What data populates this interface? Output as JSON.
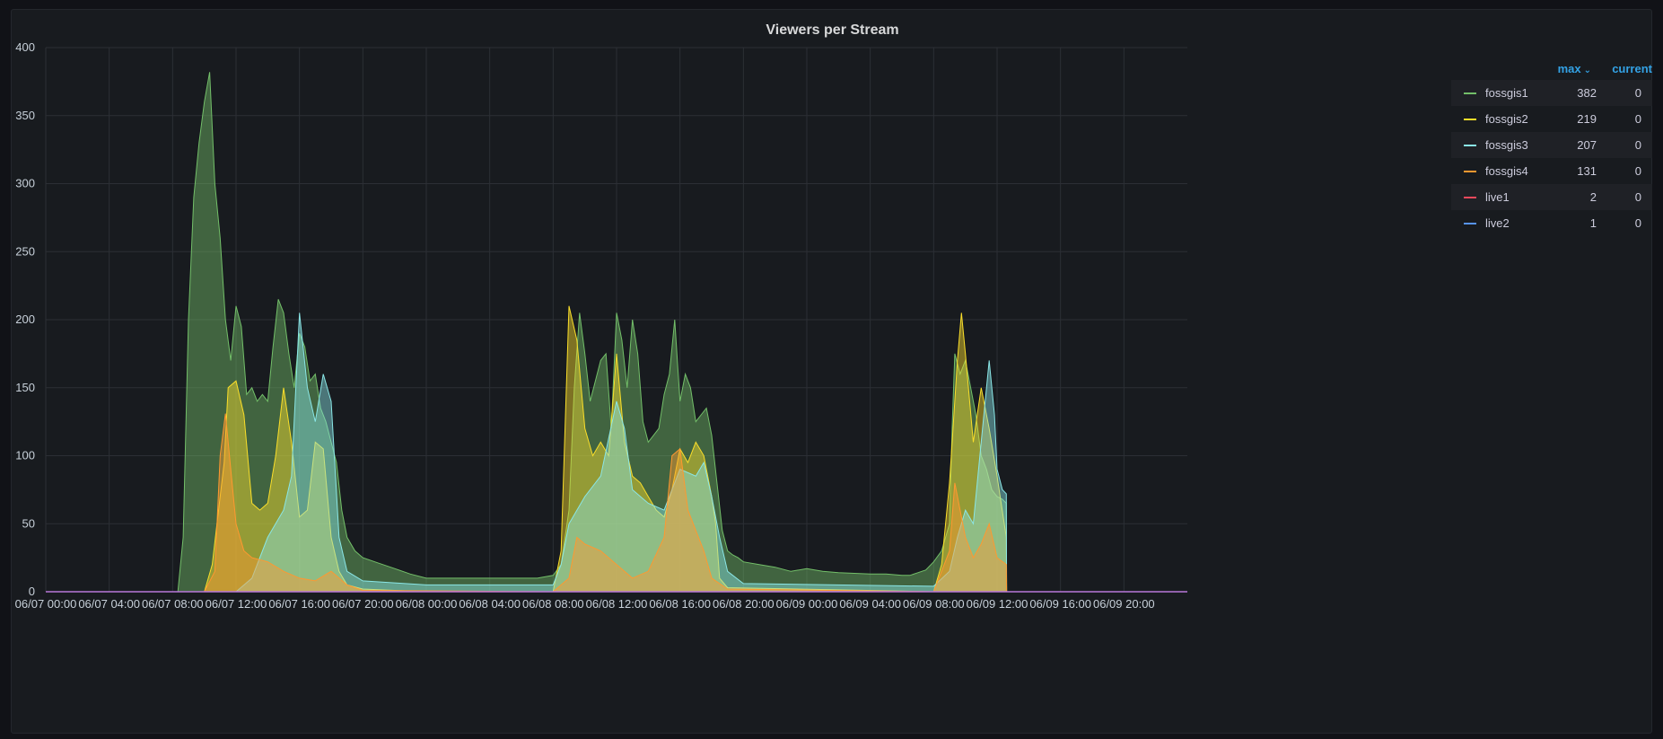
{
  "panel": {
    "title": "Viewers per Stream"
  },
  "legend": {
    "header_max": "max",
    "header_current": "current",
    "sort_icon": "chevron-down-icon",
    "items": [
      {
        "name": "fossgis1",
        "max": "382",
        "current": "0",
        "color": "#73bf69"
      },
      {
        "name": "fossgis2",
        "max": "219",
        "current": "0",
        "color": "#fade2a"
      },
      {
        "name": "fossgis3",
        "max": "207",
        "current": "0",
        "color": "#8ae6e6"
      },
      {
        "name": "fossgis4",
        "max": "131",
        "current": "0",
        "color": "#ff9830"
      },
      {
        "name": "live1",
        "max": "2",
        "current": "0",
        "color": "#f2495c"
      },
      {
        "name": "live2",
        "max": "1",
        "current": "0",
        "color": "#5794f2"
      }
    ]
  },
  "chart_data": {
    "type": "area",
    "title": "Viewers per Stream",
    "xlabel": "",
    "ylabel": "",
    "ylim": [
      0,
      400
    ],
    "yticks": [
      0,
      50,
      100,
      150,
      200,
      250,
      300,
      350,
      400
    ],
    "xlim": [
      "06/07 00:00",
      "06/09 23:59"
    ],
    "xticks": [
      "06/07 00:00",
      "06/07 04:00",
      "06/07 08:00",
      "06/07 12:00",
      "06/07 16:00",
      "06/07 20:00",
      "06/08 00:00",
      "06/08 04:00",
      "06/08 08:00",
      "06/08 12:00",
      "06/08 16:00",
      "06/08 20:00",
      "06/09 00:00",
      "06/09 04:00",
      "06/09 08:00",
      "06/09 12:00",
      "06/09 16:00",
      "06/09 20:00"
    ],
    "grid": true,
    "legend_position": "right",
    "series": [
      {
        "name": "fossgis1",
        "color": "#73bf69",
        "x": [
          "06/07 00:00",
          "06/07 08:20",
          "06/07 08:40",
          "06/07 09:00",
          "06/07 09:20",
          "06/07 09:40",
          "06/07 10:00",
          "06/07 10:20",
          "06/07 10:40",
          "06/07 11:00",
          "06/07 11:20",
          "06/07 11:40",
          "06/07 12:00",
          "06/07 12:20",
          "06/07 12:40",
          "06/07 13:00",
          "06/07 13:20",
          "06/07 13:40",
          "06/07 14:00",
          "06/07 14:20",
          "06/07 14:40",
          "06/07 15:00",
          "06/07 15:20",
          "06/07 15:40",
          "06/07 16:00",
          "06/07 16:20",
          "06/07 16:40",
          "06/07 17:00",
          "06/07 17:20",
          "06/07 17:40",
          "06/07 18:00",
          "06/07 18:20",
          "06/07 18:40",
          "06/07 19:00",
          "06/07 19:30",
          "06/07 20:00",
          "06/07 21:00",
          "06/07 22:00",
          "06/07 23:00",
          "06/08 00:00",
          "06/08 02:00",
          "06/08 04:00",
          "06/08 06:00",
          "06/08 07:00",
          "06/08 08:00",
          "06/08 08:30",
          "06/08 09:00",
          "06/08 09:20",
          "06/08 09:40",
          "06/08 10:00",
          "06/08 10:20",
          "06/08 10:40",
          "06/08 11:00",
          "06/08 11:20",
          "06/08 11:40",
          "06/08 12:00",
          "06/08 12:20",
          "06/08 12:40",
          "06/08 13:00",
          "06/08 13:20",
          "06/08 13:40",
          "06/08 14:00",
          "06/08 14:20",
          "06/08 14:40",
          "06/08 15:00",
          "06/08 15:20",
          "06/08 15:40",
          "06/08 16:00",
          "06/08 16:20",
          "06/08 16:40",
          "06/08 17:00",
          "06/08 17:20",
          "06/08 17:40",
          "06/08 18:00",
          "06/08 18:20",
          "06/08 18:40",
          "06/08 19:00",
          "06/08 19:20",
          "06/08 19:40",
          "06/08 20:00",
          "06/08 21:00",
          "06/08 22:00",
          "06/08 23:00",
          "06/09 00:00",
          "06/09 01:00",
          "06/09 02:00",
          "06/09 04:00",
          "06/09 05:00",
          "06/09 06:00",
          "06/09 06:30",
          "06/09 07:00",
          "06/09 07:30",
          "06/09 08:00",
          "06/09 08:30",
          "06/09 09:00",
          "06/09 09:10",
          "06/09 09:20",
          "06/09 09:40",
          "06/09 10:00",
          "06/09 10:20",
          "06/09 10:40",
          "06/09 11:00",
          "06/09 11:20",
          "06/09 11:40",
          "06/09 12:00",
          "06/09 12:20",
          "06/09 12:35",
          "06/09 12:36",
          "06/09 23:59"
        ],
        "values": [
          0,
          0,
          40,
          200,
          290,
          330,
          360,
          382,
          300,
          260,
          200,
          170,
          210,
          195,
          145,
          150,
          140,
          145,
          140,
          180,
          215,
          205,
          175,
          150,
          190,
          180,
          155,
          160,
          135,
          125,
          110,
          95,
          60,
          40,
          30,
          25,
          21,
          17,
          13,
          10,
          10,
          10,
          10,
          10,
          12,
          20,
          60,
          150,
          205,
          175,
          140,
          155,
          170,
          175,
          120,
          205,
          185,
          150,
          200,
          175,
          125,
          110,
          115,
          120,
          145,
          160,
          200,
          140,
          160,
          150,
          125,
          130,
          135,
          115,
          80,
          45,
          30,
          27,
          25,
          22,
          20,
          18,
          15,
          17,
          15,
          14,
          13,
          13,
          12,
          12,
          14,
          16,
          22,
          30,
          50,
          120,
          175,
          160,
          170,
          150,
          130,
          100,
          90,
          75,
          70,
          68,
          65,
          0,
          0
        ]
      },
      {
        "name": "fossgis2",
        "color": "#fade2a",
        "x": [
          "06/07 00:00",
          "06/07 10:00",
          "06/07 10:30",
          "06/07 11:00",
          "06/07 11:15",
          "06/07 11:30",
          "06/07 12:00",
          "06/07 12:30",
          "06/07 13:00",
          "06/07 13:30",
          "06/07 14:00",
          "06/07 14:30",
          "06/07 15:00",
          "06/07 15:30",
          "06/07 16:00",
          "06/07 16:30",
          "06/07 17:00",
          "06/07 17:30",
          "06/07 18:00",
          "06/07 18:30",
          "06/07 19:00",
          "06/07 20:00",
          "06/08 00:00",
          "06/08 08:00",
          "06/08 08:30",
          "06/08 09:00",
          "06/08 09:30",
          "06/08 10:00",
          "06/08 10:30",
          "06/08 11:00",
          "06/08 11:30",
          "06/08 12:00",
          "06/08 12:30",
          "06/08 13:00",
          "06/08 13:30",
          "06/08 14:00",
          "06/08 14:30",
          "06/08 15:00",
          "06/08 15:30",
          "06/08 16:00",
          "06/08 16:30",
          "06/08 17:00",
          "06/08 17:30",
          "06/08 18:00",
          "06/08 18:15",
          "06/08 18:30",
          "06/08 19:00",
          "06/09 08:00",
          "06/09 08:30",
          "06/09 09:00",
          "06/09 09:30",
          "06/09 09:45",
          "06/09 10:00",
          "06/09 10:30",
          "06/09 11:00",
          "06/09 11:30",
          "06/09 12:00",
          "06/09 12:35",
          "06/09 12:36",
          "06/09 23:59"
        ],
        "values": [
          0,
          0,
          20,
          70,
          95,
          150,
          155,
          130,
          65,
          60,
          65,
          100,
          150,
          110,
          55,
          60,
          110,
          105,
          40,
          15,
          5,
          2,
          0,
          0,
          30,
          210,
          185,
          120,
          100,
          110,
          100,
          175,
          110,
          85,
          80,
          70,
          60,
          55,
          75,
          105,
          95,
          110,
          100,
          70,
          50,
          10,
          3,
          0,
          20,
          80,
          170,
          205,
          175,
          110,
          150,
          120,
          85,
          40,
          0,
          0
        ]
      },
      {
        "name": "fossgis3",
        "color": "#8ae6e6",
        "x": [
          "06/07 00:00",
          "06/07 12:00",
          "06/07 13:00",
          "06/07 14:00",
          "06/07 15:00",
          "06/07 15:30",
          "06/07 16:00",
          "06/07 16:30",
          "06/07 17:00",
          "06/07 17:30",
          "06/07 18:00",
          "06/07 18:30",
          "06/07 19:00",
          "06/07 20:00",
          "06/08 00:00",
          "06/08 08:00",
          "06/08 08:30",
          "06/08 09:00",
          "06/08 10:00",
          "06/08 11:00",
          "06/08 12:00",
          "06/08 12:30",
          "06/08 13:00",
          "06/08 14:00",
          "06/08 15:00",
          "06/08 16:00",
          "06/08 17:00",
          "06/08 17:30",
          "06/08 18:00",
          "06/08 18:30",
          "06/08 19:00",
          "06/08 20:00",
          "06/09 08:00",
          "06/09 09:00",
          "06/09 09:30",
          "06/09 10:00",
          "06/09 10:30",
          "06/09 11:00",
          "06/09 11:30",
          "06/09 11:50",
          "06/09 12:00",
          "06/09 12:20",
          "06/09 12:35",
          "06/09 12:36",
          "06/09 23:59"
        ],
        "values": [
          0,
          0,
          10,
          40,
          60,
          85,
          205,
          150,
          125,
          160,
          140,
          40,
          15,
          8,
          5,
          5,
          20,
          50,
          70,
          85,
          140,
          120,
          75,
          65,
          60,
          90,
          85,
          95,
          70,
          40,
          15,
          6,
          4,
          15,
          40,
          60,
          50,
          110,
          170,
          130,
          90,
          75,
          72,
          0,
          0
        ]
      },
      {
        "name": "fossgis4",
        "color": "#ff9830",
        "x": [
          "06/07 00:00",
          "06/07 10:00",
          "06/07 10:40",
          "06/07 11:00",
          "06/07 11:20",
          "06/07 11:40",
          "06/07 12:00",
          "06/07 12:30",
          "06/07 13:00",
          "06/07 14:00",
          "06/07 15:00",
          "06/07 16:00",
          "06/07 17:00",
          "06/07 18:00",
          "06/07 19:00",
          "06/07 20:00",
          "06/08 08:00",
          "06/08 09:00",
          "06/08 09:30",
          "06/08 10:00",
          "06/08 11:00",
          "06/08 12:00",
          "06/08 13:00",
          "06/08 14:00",
          "06/08 15:00",
          "06/08 15:30",
          "06/08 16:00",
          "06/08 16:30",
          "06/08 17:00",
          "06/08 17:30",
          "06/08 18:00",
          "06/08 19:00",
          "06/09 08:00",
          "06/09 09:00",
          "06/09 09:20",
          "06/09 09:40",
          "06/09 10:00",
          "06/09 10:30",
          "06/09 11:00",
          "06/09 11:30",
          "06/09 12:00",
          "06/09 12:35",
          "06/09 12:36",
          "06/09 23:59"
        ],
        "values": [
          0,
          0,
          15,
          100,
          131,
          90,
          50,
          30,
          25,
          22,
          15,
          10,
          8,
          15,
          5,
          1,
          0,
          10,
          40,
          35,
          30,
          20,
          10,
          15,
          40,
          100,
          105,
          60,
          45,
          30,
          10,
          2,
          0,
          30,
          80,
          60,
          40,
          25,
          35,
          50,
          25,
          20,
          0,
          0
        ]
      },
      {
        "name": "live1",
        "color": "#f2495c",
        "x": [
          "06/07 00:00",
          "06/09 23:59"
        ],
        "values": [
          0,
          0
        ]
      },
      {
        "name": "live2",
        "color": "#5794f2",
        "x": [
          "06/07 00:00",
          "06/09 23:59"
        ],
        "values": [
          0,
          0
        ]
      }
    ]
  }
}
